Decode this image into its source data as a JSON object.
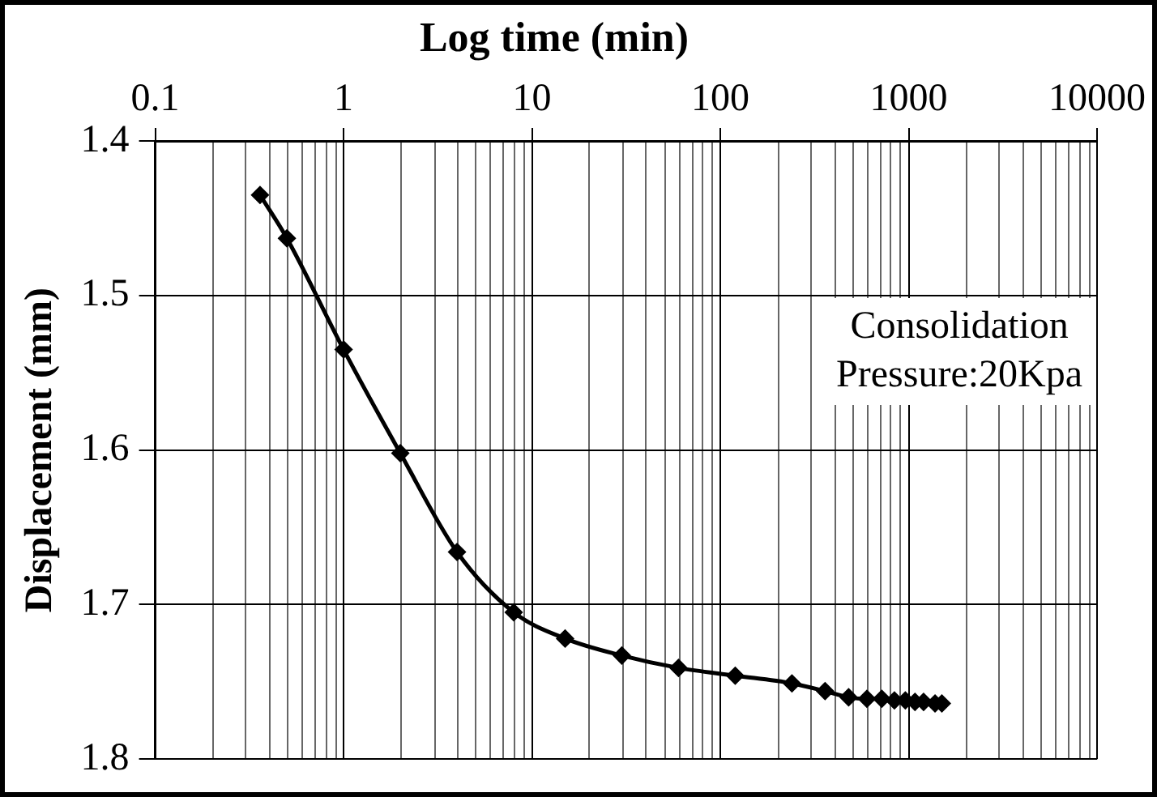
{
  "chart_data": {
    "type": "line",
    "title": "Log time (min)",
    "ylabel": "Displacement (mm)",
    "x": [
      0.36,
      0.5,
      1,
      2,
      4,
      8,
      15,
      30,
      60,
      120,
      240,
      360,
      480,
      600,
      720,
      840,
      960,
      1080,
      1200,
      1380,
      1500
    ],
    "series": [
      {
        "color": "#000000",
        "values": [
          1.435,
          1.463,
          1.535,
          1.602,
          1.666,
          1.705,
          1.722,
          1.733,
          1.741,
          1.746,
          1.751,
          1.756,
          1.76,
          1.761,
          1.761,
          1.762,
          1.762,
          1.763,
          1.763,
          1.764,
          1.764
        ]
      }
    ],
    "log": "x",
    "xlim": [
      0.1,
      10000
    ],
    "xticks": [
      0.1,
      1,
      10,
      100,
      1000,
      10000
    ],
    "ylim": [
      1.8,
      1.4
    ],
    "yticks": [
      1.4,
      1.5,
      1.6,
      1.7,
      1.8
    ],
    "grid": true,
    "legend": false,
    "marker": "diamond",
    "line_style": "solid",
    "annotations": [
      "Consolidation\nPressure:20Kpa"
    ]
  }
}
